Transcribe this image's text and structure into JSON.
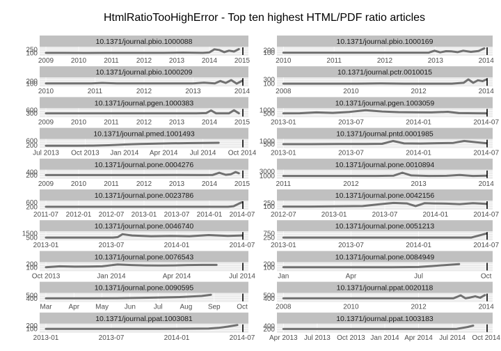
{
  "page_title": "HtmlRatioTooHighError - Top ten highest HTML/PDF ratio articles",
  "colors": {
    "strip_bg": "#c0c0c0",
    "panel_bg": "#ebebeb",
    "line": "#707070",
    "text": "#1a1a1a",
    "tick_text": "#4d4d4d",
    "end_marker": "#000000"
  },
  "chart_data": [
    {
      "type": "line",
      "strip": "10.1371/journal.pbio.1000088",
      "yticks": [
        "250",
        "100"
      ],
      "ylim": [
        0,
        350
      ],
      "xticks": [
        "2009",
        "2010",
        "2011",
        "2012",
        "2013",
        "2014",
        "2015"
      ],
      "xlim": [
        2009,
        2015
      ],
      "x": [
        2009.0,
        2009.6,
        2010.2,
        2010.8,
        2011.4,
        2012.0,
        2012.6,
        2013.2,
        2013.8,
        2014.0,
        2014.15,
        2014.3,
        2014.45,
        2014.6,
        2014.75,
        2014.9
      ],
      "y": [
        100,
        100,
        95,
        100,
        100,
        100,
        100,
        110,
        100,
        120,
        260,
        230,
        130,
        200,
        160,
        270
      ]
    },
    {
      "type": "line",
      "strip": "10.1371/journal.pbio.1000169",
      "yticks": [
        "200",
        "100"
      ],
      "ylim": [
        0,
        320
      ],
      "xticks": [
        "2010",
        "2011",
        "2012",
        "2013",
        "2014"
      ],
      "xlim": [
        2009.6,
        2014.9
      ],
      "x": [
        2009.6,
        2010.3,
        2011.0,
        2011.7,
        2012.3,
        2013.0,
        2013.4,
        2013.55,
        2013.7,
        2013.85,
        2014.0,
        2014.15,
        2014.3,
        2014.5,
        2014.7,
        2014.85
      ],
      "y": [
        100,
        100,
        100,
        100,
        100,
        100,
        100,
        180,
        110,
        160,
        150,
        120,
        180,
        130,
        170,
        280
      ]
    },
    {
      "type": "line",
      "strip": "10.1371/journal.pbio.1000209",
      "yticks": [
        "200",
        "100"
      ],
      "ylim": [
        0,
        320
      ],
      "xticks": [
        "2010",
        "2011",
        "2012",
        "2013",
        "2014"
      ],
      "xlim": [
        2009.55,
        2014.95
      ],
      "x": [
        2009.55,
        2010.2,
        2010.8,
        2011.1,
        2011.5,
        2012.0,
        2012.6,
        2013.2,
        2013.6,
        2013.9,
        2014.2,
        2014.35,
        2014.5,
        2014.65,
        2014.8,
        2014.95
      ],
      "y": [
        100,
        100,
        100,
        120,
        100,
        100,
        100,
        100,
        100,
        130,
        100,
        200,
        120,
        240,
        90,
        210
      ]
    },
    {
      "type": "line",
      "strip": "10.1371/journal.pctr.0010015",
      "yticks": [
        "300",
        "100"
      ],
      "ylim": [
        0,
        360
      ],
      "xticks": [
        "2008",
        "2010",
        "2012",
        "2014"
      ],
      "xlim": [
        2006.4,
        2014.95
      ],
      "x": [
        2006.4,
        2007.5,
        2008.5,
        2009.5,
        2010.5,
        2011.5,
        2012.5,
        2013.5,
        2014.0,
        2014.2,
        2014.4,
        2014.6,
        2014.8,
        2014.95
      ],
      "y": [
        100,
        100,
        100,
        100,
        110,
        100,
        100,
        100,
        140,
        300,
        140,
        260,
        220,
        290
      ]
    },
    {
      "type": "line",
      "strip": "10.1371/journal.pgen.1000383",
      "yticks": [
        "600",
        "300"
      ],
      "ylim": [
        0,
        700
      ],
      "xticks": [
        "2009",
        "2010",
        "2011",
        "2012",
        "2013",
        "2014",
        "2015"
      ],
      "xlim": [
        2009.0,
        2015.0
      ],
      "x": [
        2009.0,
        2009.8,
        2010.6,
        2011.4,
        2012.2,
        2013.0,
        2013.6,
        2013.9,
        2014.05,
        2014.2,
        2014.4,
        2014.6,
        2014.75,
        2014.9
      ],
      "y": [
        300,
        300,
        300,
        300,
        300,
        300,
        300,
        320,
        560,
        300,
        300,
        300,
        580,
        300
      ]
    },
    {
      "type": "line",
      "strip": "10.1371/journal.pgen.1003059",
      "yticks": [
        "1000",
        "500"
      ],
      "ylim": [
        0,
        1200
      ],
      "xticks": [
        "2013-01",
        "2013-07",
        "2014-01",
        "2014-07"
      ],
      "xlim": [
        2012.95,
        2014.8
      ],
      "x": [
        2012.95,
        2013.1,
        2013.25,
        2013.4,
        2013.55,
        2013.7,
        2013.85,
        2014.0,
        2014.15,
        2014.3,
        2014.45,
        2014.55,
        2014.7,
        2014.8
      ],
      "y": [
        500,
        520,
        650,
        580,
        720,
        1000,
        800,
        700,
        680,
        650,
        750,
        550,
        520,
        500
      ]
    },
    {
      "type": "line",
      "strip": "10.1371/journal.pmed.1001493",
      "yticks": [
        "600",
        "200"
      ],
      "ylim": [
        0,
        700
      ],
      "xticks": [
        "Jul 2013",
        "Oct 2013",
        "Jan 2014",
        "Apr 2014",
        "Jul 2014",
        "Oct 2014"
      ],
      "xlim": [
        2013.5,
        2014.75
      ],
      "x": [
        2013.5,
        2013.6,
        2013.7,
        2013.8,
        2013.9,
        2014.0,
        2014.1,
        2014.2,
        2014.3,
        2014.4,
        2014.5,
        2014.6
      ],
      "y": [
        150,
        150,
        150,
        160,
        200,
        260,
        310,
        340,
        370,
        390,
        410,
        420
      ]
    },
    {
      "type": "line",
      "strip": "10.1371/journal.pntd.0001985",
      "yticks": [
        "1000",
        "500"
      ],
      "ylim": [
        0,
        1200
      ],
      "xticks": [
        "2013-01",
        "2013-07",
        "2014-01",
        "2014-07"
      ],
      "xlim": [
        2012.95,
        2014.8
      ],
      "x": [
        2012.95,
        2013.2,
        2013.45,
        2013.7,
        2013.85,
        2013.95,
        2014.05,
        2014.2,
        2014.35,
        2014.5,
        2014.6,
        2014.7,
        2014.8
      ],
      "y": [
        500,
        500,
        520,
        540,
        560,
        1000,
        620,
        600,
        650,
        700,
        1000,
        820,
        650
      ]
    },
    {
      "type": "line",
      "strip": "10.1371/journal.pone.0004276",
      "yticks": [
        "400",
        "200"
      ],
      "ylim": [
        0,
        500
      ],
      "xticks": [
        "2009",
        "2010",
        "2011",
        "2012",
        "2013",
        "2014",
        "2015"
      ],
      "xlim": [
        2009.0,
        2015.0
      ],
      "x": [
        2009.0,
        2009.8,
        2010.6,
        2011.4,
        2012.2,
        2013.0,
        2013.7,
        2014.1,
        2014.3,
        2014.5,
        2014.65,
        2014.8,
        2014.9
      ],
      "y": [
        200,
        200,
        200,
        200,
        200,
        210,
        200,
        210,
        350,
        220,
        250,
        400,
        320
      ]
    },
    {
      "type": "line",
      "strip": "10.1371/journal.pone.0010894",
      "yticks": [
        "3000",
        "1000"
      ],
      "ylim": [
        0,
        3400
      ],
      "xticks": [
        "2011",
        "2012",
        "2013",
        "2014"
      ],
      "xlim": [
        2010.3,
        2014.9
      ],
      "x": [
        2010.3,
        2011.0,
        2011.7,
        2012.4,
        2012.8,
        2013.0,
        2013.2,
        2013.6,
        2014.0,
        2014.3,
        2014.6,
        2014.9
      ],
      "y": [
        1000,
        1000,
        1000,
        1000,
        1100,
        2400,
        1200,
        1000,
        1050,
        1400,
        1000,
        1100
      ]
    },
    {
      "type": "line",
      "strip": "10.1371/journal.pone.0023786",
      "yticks": [
        "600",
        "200"
      ],
      "ylim": [
        0,
        700
      ],
      "xticks": [
        "2011-07",
        "2012-01",
        "2012-07",
        "2013-01",
        "2013-07",
        "2014-01",
        "2014-07"
      ],
      "xlim": [
        2011.4,
        2014.85
      ],
      "x": [
        2011.4,
        2012.0,
        2012.6,
        2013.2,
        2013.8,
        2014.3,
        2014.6,
        2014.7,
        2014.8,
        2014.85
      ],
      "y": [
        200,
        200,
        200,
        200,
        200,
        200,
        200,
        250,
        500,
        620
      ]
    },
    {
      "type": "line",
      "strip": "10.1371/journal.pone.0042156",
      "yticks": [
        "250",
        "100"
      ],
      "ylim": [
        0,
        320
      ],
      "xticks": [
        "2012-07",
        "2013-01",
        "2013-07",
        "2014-01",
        "2014-07"
      ],
      "xlim": [
        2012.5,
        2014.8
      ],
      "x": [
        2012.5,
        2012.8,
        2013.1,
        2013.4,
        2013.6,
        2013.75,
        2013.9,
        2014.0,
        2014.1,
        2014.2,
        2014.35,
        2014.5,
        2014.65,
        2014.8
      ],
      "y": [
        100,
        100,
        110,
        120,
        200,
        250,
        230,
        120,
        240,
        230,
        220,
        200,
        240,
        210
      ]
    },
    {
      "type": "line",
      "strip": "10.1371/journal.pone.0046740",
      "yticks": [
        "1500",
        "500"
      ],
      "ylim": [
        0,
        1800
      ],
      "xticks": [
        "2013-01",
        "2013-07",
        "2014-01",
        "2014-07"
      ],
      "xlim": [
        2012.8,
        2014.85
      ],
      "x": [
        2012.8,
        2013.2,
        2013.5,
        2013.55,
        2013.6,
        2013.7,
        2013.9,
        2014.1,
        2014.3,
        2014.5,
        2014.6,
        2014.7,
        2014.85
      ],
      "y": [
        500,
        500,
        500,
        600,
        1300,
        1000,
        800,
        900,
        800,
        1100,
        1000,
        900,
        1000
      ]
    },
    {
      "type": "line",
      "strip": "10.1371/journal.pone.0051213",
      "yticks": [
        "750",
        "250"
      ],
      "ylim": [
        0,
        900
      ],
      "xticks": [
        "2013-01",
        "2013-07",
        "2014-01",
        "2014-07"
      ],
      "xlim": [
        2012.8,
        2014.85
      ],
      "x": [
        2012.8,
        2013.2,
        2013.6,
        2014.0,
        2014.4,
        2014.7,
        2014.85
      ],
      "y": [
        250,
        250,
        250,
        250,
        250,
        250,
        720
      ]
    },
    {
      "type": "line",
      "strip": "10.1371/journal.pone.0076543",
      "yticks": [
        "200",
        "100"
      ],
      "ylim": [
        0,
        240
      ],
      "xticks": [
        "Oct 2013",
        "Jan 2014",
        "Apr 2014",
        "Jul 2014"
      ],
      "xlim": [
        2013.75,
        2014.9
      ],
      "x": [
        2013.75,
        2013.83,
        2013.92,
        2014.0,
        2014.08,
        2014.17,
        2014.25,
        2014.33,
        2014.42,
        2014.5,
        2014.58,
        2014.67,
        2014.75
      ],
      "y": [
        100,
        130,
        120,
        125,
        130,
        190,
        170,
        160,
        155,
        160,
        170,
        175,
        175
      ]
    },
    {
      "type": "line",
      "strip": "10.1371/journal.pone.0084949",
      "yticks": [
        "200",
        "100"
      ],
      "ylim": [
        0,
        240
      ],
      "xticks": [
        "Jan",
        "Apr",
        "Jul",
        "Oct"
      ],
      "xlim": [
        2014.0,
        2014.75
      ],
      "x": [
        2014.0,
        2014.1,
        2014.2,
        2014.3,
        2014.4,
        2014.5,
        2014.55,
        2014.6,
        2014.65
      ],
      "y": [
        100,
        100,
        100,
        100,
        100,
        110,
        140,
        170,
        200
      ]
    },
    {
      "type": "line",
      "strip": "10.1371/journal.pone.0090595",
      "yticks": [
        "500",
        "400"
      ],
      "ylim": [
        300,
        560
      ],
      "xticks": [
        "Mar",
        "Apr",
        "May",
        "Jun",
        "Jul",
        "Aug",
        "Sep",
        "Oct"
      ],
      "xlim": [
        2014.17,
        2014.8
      ],
      "x": [
        2014.17,
        2014.3,
        2014.4,
        2014.5,
        2014.6,
        2014.67,
        2014.7
      ],
      "y": [
        400,
        400,
        405,
        420,
        445,
        480,
        520
      ]
    },
    {
      "type": "line",
      "strip": "10.1371/journal.ppat.0020118",
      "yticks": [
        "500",
        "400"
      ],
      "ylim": [
        300,
        560
      ],
      "xticks": [
        "2008",
        "2010",
        "2012",
        "2014"
      ],
      "xlim": [
        2006.6,
        2014.95
      ],
      "x": [
        2006.6,
        2008.0,
        2009.5,
        2011.0,
        2012.5,
        2013.6,
        2013.9,
        2014.1,
        2014.3,
        2014.5,
        2014.7,
        2014.9
      ],
      "y": [
        400,
        400,
        400,
        400,
        400,
        400,
        500,
        400,
        430,
        470,
        420,
        510
      ]
    },
    {
      "type": "line",
      "strip": "10.1371/journal.ppat.1003081",
      "yticks": [
        "200",
        "100"
      ],
      "ylim": [
        0,
        240
      ],
      "xticks": [
        "2013-01",
        "2013-07",
        "2014-01",
        "2014-07"
      ],
      "xlim": [
        2012.8,
        2014.85
      ],
      "x": [
        2012.8,
        2013.2,
        2013.6,
        2014.0,
        2014.3,
        2014.5,
        2014.6,
        2014.7,
        2014.8
      ],
      "y": [
        100,
        100,
        100,
        100,
        105,
        110,
        130,
        170,
        220
      ]
    },
    {
      "type": "line",
      "strip": "10.1371/journal.ppat.1003183",
      "yticks": [
        "400",
        "200"
      ],
      "ylim": [
        0,
        500
      ],
      "xticks": [
        "Apr 2013",
        "Jul 2013",
        "Oct 2013",
        "Jan 2014",
        "Apr 2014",
        "Jul 2014",
        "Oct 2014"
      ],
      "xlim": [
        2013.0,
        2014.87
      ],
      "x": [
        2013.0,
        2013.4,
        2013.8,
        2014.2,
        2014.5,
        2014.6,
        2014.7,
        2014.75
      ],
      "y": [
        200,
        200,
        200,
        200,
        200,
        210,
        330,
        420
      ]
    }
  ]
}
